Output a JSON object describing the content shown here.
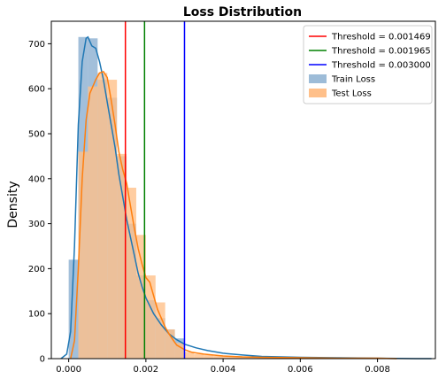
{
  "chart_data": {
    "type": "histogram_kde",
    "title": "Loss Distribution",
    "xlabel": "",
    "ylabel": "Density",
    "xlim": [
      -0.00045,
      0.0095
    ],
    "ylim": [
      0,
      750
    ],
    "x_ticks": [
      0.0,
      0.002,
      0.004,
      0.006,
      0.008
    ],
    "x_tick_labels": [
      "0.000",
      "0.002",
      "0.004",
      "0.006",
      "0.008"
    ],
    "y_ticks": [
      0,
      100,
      200,
      300,
      400,
      500,
      600,
      700
    ],
    "y_tick_labels": [
      "0",
      "100",
      "200",
      "300",
      "400",
      "500",
      "600",
      "700"
    ],
    "grid": false,
    "legend_position": "top-right",
    "bin_width": 0.00025,
    "thresholds": [
      {
        "label": "Threshold = 0.001469",
        "value": 0.001469,
        "color": "#ff0000"
      },
      {
        "label": "Threshold = 0.001965",
        "value": 0.001965,
        "color": "#008000"
      },
      {
        "label": "Threshold = 0.003000",
        "value": 0.003,
        "color": "#0000ff"
      }
    ],
    "series": [
      {
        "name": "Train Loss",
        "color": "#1f77b4",
        "bar_color": "#9dbcd8",
        "bins": [
          {
            "x": 0.0,
            "h": 220
          },
          {
            "x": 0.00025,
            "h": 715
          },
          {
            "x": 0.0005,
            "h": 712
          },
          {
            "x": 0.00075,
            "h": 620
          },
          {
            "x": 0.001,
            "h": 580
          },
          {
            "x": 0.00125,
            "h": 450
          },
          {
            "x": 0.0015,
            "h": 300
          },
          {
            "x": 0.00175,
            "h": 185
          },
          {
            "x": 0.002,
            "h": 130
          },
          {
            "x": 0.00225,
            "h": 90
          },
          {
            "x": 0.0025,
            "h": 65
          },
          {
            "x": 0.00275,
            "h": 45
          }
        ],
        "kde": [
          [
            -0.0002,
            0
          ],
          [
            -5e-05,
            10
          ],
          [
            5e-05,
            60
          ],
          [
            0.00015,
            250
          ],
          [
            0.00025,
            520
          ],
          [
            0.00035,
            660
          ],
          [
            0.00045,
            712
          ],
          [
            0.0005,
            715
          ],
          [
            0.00055,
            705
          ],
          [
            0.0006,
            695
          ],
          [
            0.0007,
            690
          ],
          [
            0.0008,
            660
          ],
          [
            0.0009,
            620
          ],
          [
            0.001,
            570
          ],
          [
            0.0011,
            520
          ],
          [
            0.0012,
            470
          ],
          [
            0.0013,
            410
          ],
          [
            0.0014,
            360
          ],
          [
            0.0015,
            310
          ],
          [
            0.0016,
            270
          ],
          [
            0.0017,
            230
          ],
          [
            0.0018,
            190
          ],
          [
            0.0019,
            160
          ],
          [
            0.002,
            135
          ],
          [
            0.0022,
            100
          ],
          [
            0.0024,
            75
          ],
          [
            0.0026,
            55
          ],
          [
            0.0028,
            42
          ],
          [
            0.003,
            32
          ],
          [
            0.0033,
            24
          ],
          [
            0.0036,
            18
          ],
          [
            0.004,
            12
          ],
          [
            0.0045,
            8
          ],
          [
            0.005,
            5
          ],
          [
            0.006,
            3
          ],
          [
            0.007,
            2
          ],
          [
            0.008,
            1
          ],
          [
            0.009,
            0
          ],
          [
            0.0094,
            0
          ]
        ]
      },
      {
        "name": "Test Loss",
        "color": "#ff7f0e",
        "bar_color": "#ffc08a",
        "bins": [
          {
            "x": 0.00025,
            "h": 460
          },
          {
            "x": 0.0005,
            "h": 605
          },
          {
            "x": 0.00075,
            "h": 635
          },
          {
            "x": 0.001,
            "h": 620
          },
          {
            "x": 0.00125,
            "h": 455
          },
          {
            "x": 0.0015,
            "h": 380
          },
          {
            "x": 0.00175,
            "h": 275
          },
          {
            "x": 0.002,
            "h": 185
          },
          {
            "x": 0.00225,
            "h": 125
          },
          {
            "x": 0.0025,
            "h": 65
          },
          {
            "x": 0.00275,
            "h": 35
          },
          {
            "x": 0.003,
            "h": 15
          },
          {
            "x": 0.00325,
            "h": 10
          },
          {
            "x": 0.0035,
            "h": 8
          },
          {
            "x": 0.00375,
            "h": 6
          },
          {
            "x": 0.004,
            "h": 5
          },
          {
            "x": 0.00425,
            "h": 4
          },
          {
            "x": 0.0045,
            "h": 4
          },
          {
            "x": 0.00475,
            "h": 3
          },
          {
            "x": 0.005,
            "h": 3
          },
          {
            "x": 0.00525,
            "h": 2
          },
          {
            "x": 0.0055,
            "h": 2
          },
          {
            "x": 0.00575,
            "h": 2
          },
          {
            "x": 0.006,
            "h": 2
          },
          {
            "x": 0.00625,
            "h": 1
          },
          {
            "x": 0.0065,
            "h": 1
          },
          {
            "x": 0.00675,
            "h": 1
          },
          {
            "x": 0.007,
            "h": 1
          },
          {
            "x": 0.00725,
            "h": 1
          },
          {
            "x": 0.0075,
            "h": 1
          },
          {
            "x": 0.00775,
            "h": 1
          },
          {
            "x": 0.008,
            "h": 1
          },
          {
            "x": 0.00825,
            "h": 0
          }
        ],
        "kde": [
          [
            5e-05,
            0
          ],
          [
            0.00015,
            40
          ],
          [
            0.00025,
            200
          ],
          [
            0.00035,
            400
          ],
          [
            0.00045,
            530
          ],
          [
            0.00055,
            590
          ],
          [
            0.0007,
            620
          ],
          [
            0.0008,
            635
          ],
          [
            0.0009,
            638
          ],
          [
            0.001,
            625
          ],
          [
            0.0011,
            575
          ],
          [
            0.0012,
            520
          ],
          [
            0.0013,
            460
          ],
          [
            0.0014,
            420
          ],
          [
            0.0015,
            390
          ],
          [
            0.0016,
            340
          ],
          [
            0.0017,
            290
          ],
          [
            0.0018,
            245
          ],
          [
            0.0019,
            210
          ],
          [
            0.002,
            180
          ],
          [
            0.0021,
            170
          ],
          [
            0.0022,
            140
          ],
          [
            0.0023,
            110
          ],
          [
            0.0024,
            90
          ],
          [
            0.0025,
            70
          ],
          [
            0.0026,
            55
          ],
          [
            0.0027,
            42
          ],
          [
            0.0028,
            30
          ],
          [
            0.003,
            20
          ],
          [
            0.0032,
            14
          ],
          [
            0.0035,
            10
          ],
          [
            0.004,
            6
          ],
          [
            0.0045,
            4
          ],
          [
            0.005,
            3
          ],
          [
            0.006,
            2
          ],
          [
            0.007,
            1
          ],
          [
            0.008,
            1
          ],
          [
            0.0085,
            0
          ]
        ]
      }
    ]
  }
}
